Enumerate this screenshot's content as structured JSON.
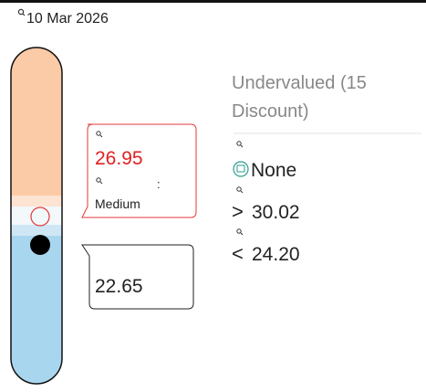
{
  "header": {
    "date": "10 Mar 2026"
  },
  "gauge": {
    "current": {
      "value": "26.95",
      "separator": ":",
      "label": "Medium"
    },
    "fair": {
      "value": "22.65"
    }
  },
  "summary": {
    "status": "Undervalued (15 Discount)",
    "signal": "None",
    "upper": {
      "symbol": ">",
      "value": "30.02"
    },
    "lower": {
      "symbol": "<",
      "value": "24.20"
    }
  }
}
